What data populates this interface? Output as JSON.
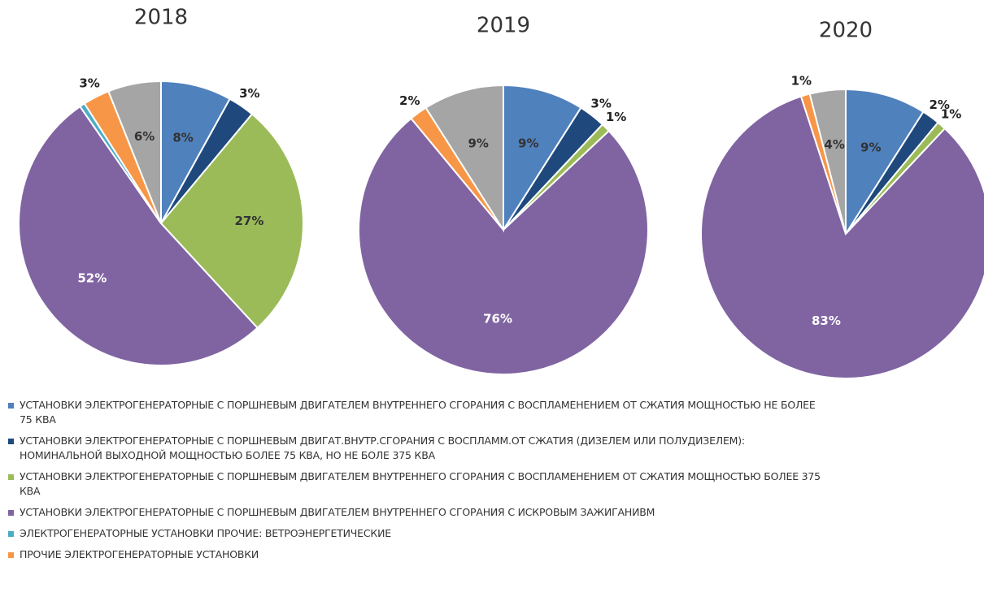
{
  "legend": {
    "items": [
      {
        "name": "УСТАНОВКИ ЭЛЕКТРОГЕНЕРАТОРНЫЕ С ПОРШНЕВЫМ ДВИГАТЕЛЕМ ВНУТРЕННЕГО СГОРАНИЯ С ВОСПЛАМЕНЕНИЕМ ОТ СЖАТИЯ МОЩНОСТЬЮ НЕ БОЛЕЕ 75 КВА",
        "color": "#4f81bd"
      },
      {
        "name": "УСТАНОВКИ ЭЛЕКТРОГЕНЕРАТОРНЫЕ С ПОРШНЕВЫМ ДВИГАТ.ВНУТР.СГОРАНИЯ С ВОСПЛАММ.ОТ СЖАТИЯ (ДИЗЕЛЕМ ИЛИ ПОЛУДИЗЕЛЕМ): НОМИНАЛЬНОЙ ВЫХОДНОЙ МОЩНОСТЬЮ БОЛЕЕ 75 КВА, НО НЕ БОЛЕ 375 КВА",
        "color": "#1f497d"
      },
      {
        "name": "УСТАНОВКИ ЭЛЕКТРОГЕНЕРАТОРНЫЕ С ПОРШНЕВЫМ ДВИГАТЕЛЕМ ВНУТРЕННЕГО СГОРАНИЯ С ВОСПЛАМЕНЕНИЕМ ОТ СЖАТИЯ МОЩНОСТЬЮ БОЛЕЕ 375 КВА",
        "color": "#9bbb59"
      },
      {
        "name": "УСТАНОВКИ ЭЛЕКТРОГЕНЕРАТОРНЫЕ С ПОРШНЕВЫМ ДВИГАТЕЛЕМ ВНУТРЕННЕГО СГОРАНИЯ С ИСКРОВЫМ ЗАЖИГАНИВМ",
        "color": "#8064a2"
      },
      {
        "name": "ЭЛЕКТРОГЕНЕРАТОРНЫЕ УСТАНОВКИ ПРОЧИЕ: ВЕТРОЭНЕРГЕТИЧЕСКИЕ",
        "color": "#4bacc6"
      },
      {
        "name": "ПРОЧИЕ ЭЛЕКТРОГЕНЕРАТОРНЫЕ УСТАНОВКИ",
        "color": "#f79646"
      },
      {
        "name": null,
        "color": "#a5a5a5"
      }
    ]
  },
  "chart_data": [
    {
      "type": "pie",
      "title": "2018",
      "values": [
        8,
        3,
        27,
        52,
        0.6,
        3,
        6
      ],
      "value_labels": [
        "8%",
        "3%",
        "27%",
        "52%",
        null,
        "3%",
        "6%"
      ]
    },
    {
      "type": "pie",
      "title": "2019",
      "values": [
        9,
        3,
        1,
        76,
        0,
        2,
        9
      ],
      "value_labels": [
        "9%",
        "3%",
        "1%",
        "76%",
        null,
        "2%",
        "9%"
      ]
    },
    {
      "type": "pie",
      "title": "2020",
      "values": [
        9,
        2,
        1,
        83,
        0,
        1,
        4
      ],
      "value_labels": [
        "9%",
        "2%",
        "1%",
        "83%",
        null,
        "1%",
        "4%"
      ]
    }
  ]
}
